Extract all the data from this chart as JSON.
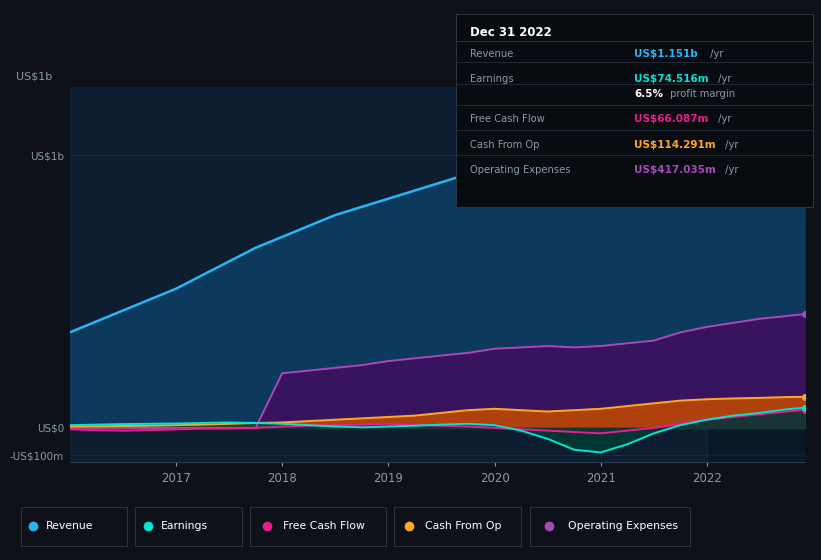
{
  "bg_color": "#0e1117",
  "plot_bg_color": "#0d1e30",
  "grid_color": "#1a2e45",
  "title_box": {
    "date": "Dec 31 2022",
    "rows": [
      {
        "label": "Revenue",
        "value": "US$1.151b",
        "unit": " /yr",
        "value_color": "#29b6f6"
      },
      {
        "label": "Earnings",
        "value": "US$74.516m",
        "unit": " /yr",
        "value_color": "#00e5d4"
      },
      {
        "label": "",
        "value": "6.5%",
        "unit": " profit margin",
        "value_color": "#ffffff"
      },
      {
        "label": "Free Cash Flow",
        "value": "US$66.087m",
        "unit": " /yr",
        "value_color": "#e91e8c"
      },
      {
        "label": "Cash From Op",
        "value": "US$114.291m",
        "unit": " /yr",
        "value_color": "#ffa726"
      },
      {
        "label": "Operating Expenses",
        "value": "US$417.035m",
        "unit": " /yr",
        "value_color": "#ab47bc"
      }
    ]
  },
  "years": [
    2016.0,
    2016.25,
    2016.5,
    2016.75,
    2017.0,
    2017.25,
    2017.5,
    2017.75,
    2018.0,
    2018.25,
    2018.5,
    2018.75,
    2019.0,
    2019.25,
    2019.5,
    2019.75,
    2020.0,
    2020.25,
    2020.5,
    2020.75,
    2021.0,
    2021.25,
    2021.5,
    2021.75,
    2022.0,
    2022.25,
    2022.5,
    2022.75,
    2022.92
  ],
  "revenue": [
    350,
    390,
    430,
    470,
    510,
    560,
    610,
    660,
    700,
    740,
    780,
    810,
    840,
    870,
    900,
    930,
    950,
    930,
    910,
    900,
    910,
    950,
    1000,
    1060,
    1080,
    1100,
    1120,
    1145,
    1151
  ],
  "earnings": [
    10,
    12,
    14,
    15,
    16,
    18,
    20,
    18,
    15,
    10,
    5,
    2,
    5,
    8,
    12,
    15,
    10,
    -10,
    -40,
    -80,
    -90,
    -60,
    -20,
    10,
    30,
    45,
    55,
    68,
    74
  ],
  "free_cash_flow": [
    -5,
    -8,
    -10,
    -8,
    -5,
    -3,
    -2,
    0,
    5,
    8,
    10,
    12,
    15,
    10,
    8,
    5,
    0,
    -5,
    -10,
    -15,
    -20,
    -10,
    0,
    15,
    30,
    40,
    50,
    60,
    66
  ],
  "cash_from_op": [
    5,
    6,
    7,
    8,
    10,
    12,
    15,
    18,
    20,
    25,
    30,
    35,
    40,
    45,
    55,
    65,
    70,
    65,
    60,
    65,
    70,
    80,
    90,
    100,
    105,
    108,
    110,
    113,
    114
  ],
  "operating_expenses": [
    0,
    0,
    0,
    0,
    0,
    0,
    0,
    0,
    200,
    210,
    220,
    230,
    245,
    255,
    265,
    275,
    290,
    295,
    300,
    295,
    300,
    310,
    320,
    350,
    370,
    385,
    400,
    410,
    417
  ],
  "revenue_color": "#29b6f6",
  "revenue_fill": "#0d3a5c",
  "earnings_color": "#00e5d4",
  "earnings_fill": "#003d35",
  "free_cash_flow_color": "#e91e8c",
  "free_cash_flow_fill": "#7a0a40",
  "cash_from_op_color": "#ffa726",
  "cash_from_op_fill": "#c44a00",
  "operating_expenses_color": "#ab47bc",
  "operating_expenses_fill": "#3d1060",
  "ylim_min": -125,
  "ylim_max": 1250,
  "y_ticks_val": [
    -100,
    0,
    1000
  ],
  "y_labels": [
    "-US$100m",
    "US$0",
    "US$1b"
  ],
  "x_ticks": [
    2017,
    2018,
    2019,
    2020,
    2021,
    2022
  ],
  "legend_items": [
    {
      "label": "Revenue",
      "color": "#29b6f6"
    },
    {
      "label": "Earnings",
      "color": "#00e5d4"
    },
    {
      "label": "Free Cash Flow",
      "color": "#e91e8c"
    },
    {
      "label": "Cash From Op",
      "color": "#ffa726"
    },
    {
      "label": "Operating Expenses",
      "color": "#ab47bc"
    }
  ]
}
